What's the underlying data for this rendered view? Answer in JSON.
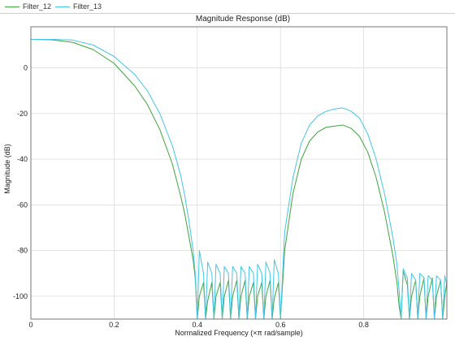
{
  "legend": {
    "items": [
      {
        "label": "Filter_12",
        "color": "#3fa33f"
      },
      {
        "label": "Filter_13",
        "color": "#44c4e6"
      }
    ]
  },
  "chart_data": {
    "type": "line",
    "title": "Magnitude Response (dB)",
    "xlabel": "Normalized Frequency (×π rad/sample)",
    "ylabel": "Magnitude (dB)",
    "xlim": [
      0,
      1
    ],
    "ylim": [
      -110,
      18
    ],
    "xticks": [
      0,
      0.2,
      0.4,
      0.6,
      0.8
    ],
    "xtick_labels": [
      "0",
      "0.2",
      "0.4",
      "0.6",
      "0.8"
    ],
    "yticks": [
      -100,
      -80,
      -60,
      -40,
      -20,
      0
    ],
    "ytick_labels": [
      "-100",
      "-80",
      "-60",
      "-40",
      "-20",
      "0"
    ],
    "grid": true,
    "series": [
      {
        "name": "Filter_12",
        "color": "#3fa33f",
        "x": [
          0,
          0.05,
          0.1,
          0.15,
          0.2,
          0.25,
          0.28,
          0.31,
          0.34,
          0.36,
          0.37,
          0.38,
          0.39,
          0.395,
          0.4,
          0.405,
          0.415,
          0.42,
          0.425,
          0.435,
          0.44,
          0.445,
          0.455,
          0.46,
          0.465,
          0.475,
          0.48,
          0.485,
          0.495,
          0.5,
          0.505,
          0.515,
          0.52,
          0.525,
          0.535,
          0.54,
          0.545,
          0.555,
          0.56,
          0.565,
          0.575,
          0.58,
          0.585,
          0.595,
          0.6,
          0.61,
          0.63,
          0.65,
          0.67,
          0.69,
          0.71,
          0.73,
          0.75,
          0.77,
          0.79,
          0.81,
          0.83,
          0.85,
          0.87,
          0.88,
          0.885,
          0.89,
          0.895,
          0.905,
          0.91,
          0.915,
          0.925,
          0.93,
          0.935,
          0.945,
          0.95,
          0.955,
          0.965,
          0.97,
          0.975,
          0.985,
          0.99,
          0.995,
          1.0
        ],
        "y": [
          12.5,
          12.3,
          11.2,
          8,
          2,
          -8,
          -16,
          -27,
          -42,
          -56,
          -64,
          -74,
          -84,
          -92,
          -110,
          -100,
          -94,
          -110,
          -102,
          -94,
          -110,
          -100,
          -94,
          -110,
          -100,
          -93,
          -110,
          -100,
          -93,
          -110,
          -100,
          -93,
          -110,
          -100,
          -94,
          -110,
          -100,
          -94,
          -110,
          -100,
          -93,
          -110,
          -101,
          -94,
          -110,
          -80,
          -55,
          -40,
          -32,
          -28,
          -26,
          -25.5,
          -25,
          -26.5,
          -30,
          -37,
          -48,
          -63,
          -82,
          -94,
          -104,
          -110,
          -89,
          -95,
          -110,
          -100,
          -93,
          -110,
          -100,
          -92,
          -110,
          -100,
          -92,
          -110,
          -100,
          -93,
          -110,
          -100,
          -94
        ]
      },
      {
        "name": "Filter_13",
        "color": "#44c4e6",
        "x": [
          0,
          0.05,
          0.1,
          0.15,
          0.2,
          0.25,
          0.28,
          0.31,
          0.34,
          0.36,
          0.37,
          0.38,
          0.39,
          0.395,
          0.4,
          0.405,
          0.415,
          0.42,
          0.425,
          0.435,
          0.44,
          0.445,
          0.455,
          0.46,
          0.465,
          0.475,
          0.48,
          0.485,
          0.495,
          0.5,
          0.505,
          0.515,
          0.52,
          0.525,
          0.535,
          0.54,
          0.545,
          0.555,
          0.56,
          0.565,
          0.575,
          0.58,
          0.585,
          0.595,
          0.6,
          0.61,
          0.63,
          0.65,
          0.67,
          0.69,
          0.71,
          0.73,
          0.75,
          0.77,
          0.79,
          0.81,
          0.83,
          0.85,
          0.87,
          0.88,
          0.885,
          0.89,
          0.895,
          0.905,
          0.91,
          0.915,
          0.925,
          0.93,
          0.935,
          0.945,
          0.95,
          0.955,
          0.965,
          0.97,
          0.975,
          0.985,
          0.99,
          0.995,
          1.0
        ],
        "y": [
          12.5,
          12.5,
          12.2,
          10,
          5,
          -3,
          -10,
          -20,
          -34,
          -47,
          -56,
          -67,
          -80,
          -90,
          -110,
          -80,
          -90,
          -110,
          -85,
          -90,
          -110,
          -86,
          -90,
          -110,
          -87,
          -90,
          -110,
          -87,
          -90,
          -110,
          -87,
          -90,
          -110,
          -87,
          -90,
          -110,
          -86,
          -90,
          -110,
          -85,
          -90,
          -110,
          -84,
          -90,
          -110,
          -72,
          -48,
          -33,
          -25,
          -21,
          -19,
          -18,
          -17.5,
          -19,
          -22,
          -29,
          -40,
          -55,
          -74,
          -86,
          -97,
          -110,
          -88,
          -92,
          -110,
          -90,
          -93,
          -110,
          -90,
          -92,
          -110,
          -91,
          -93,
          -110,
          -91,
          -93,
          -110,
          -91,
          -95
        ]
      }
    ]
  }
}
